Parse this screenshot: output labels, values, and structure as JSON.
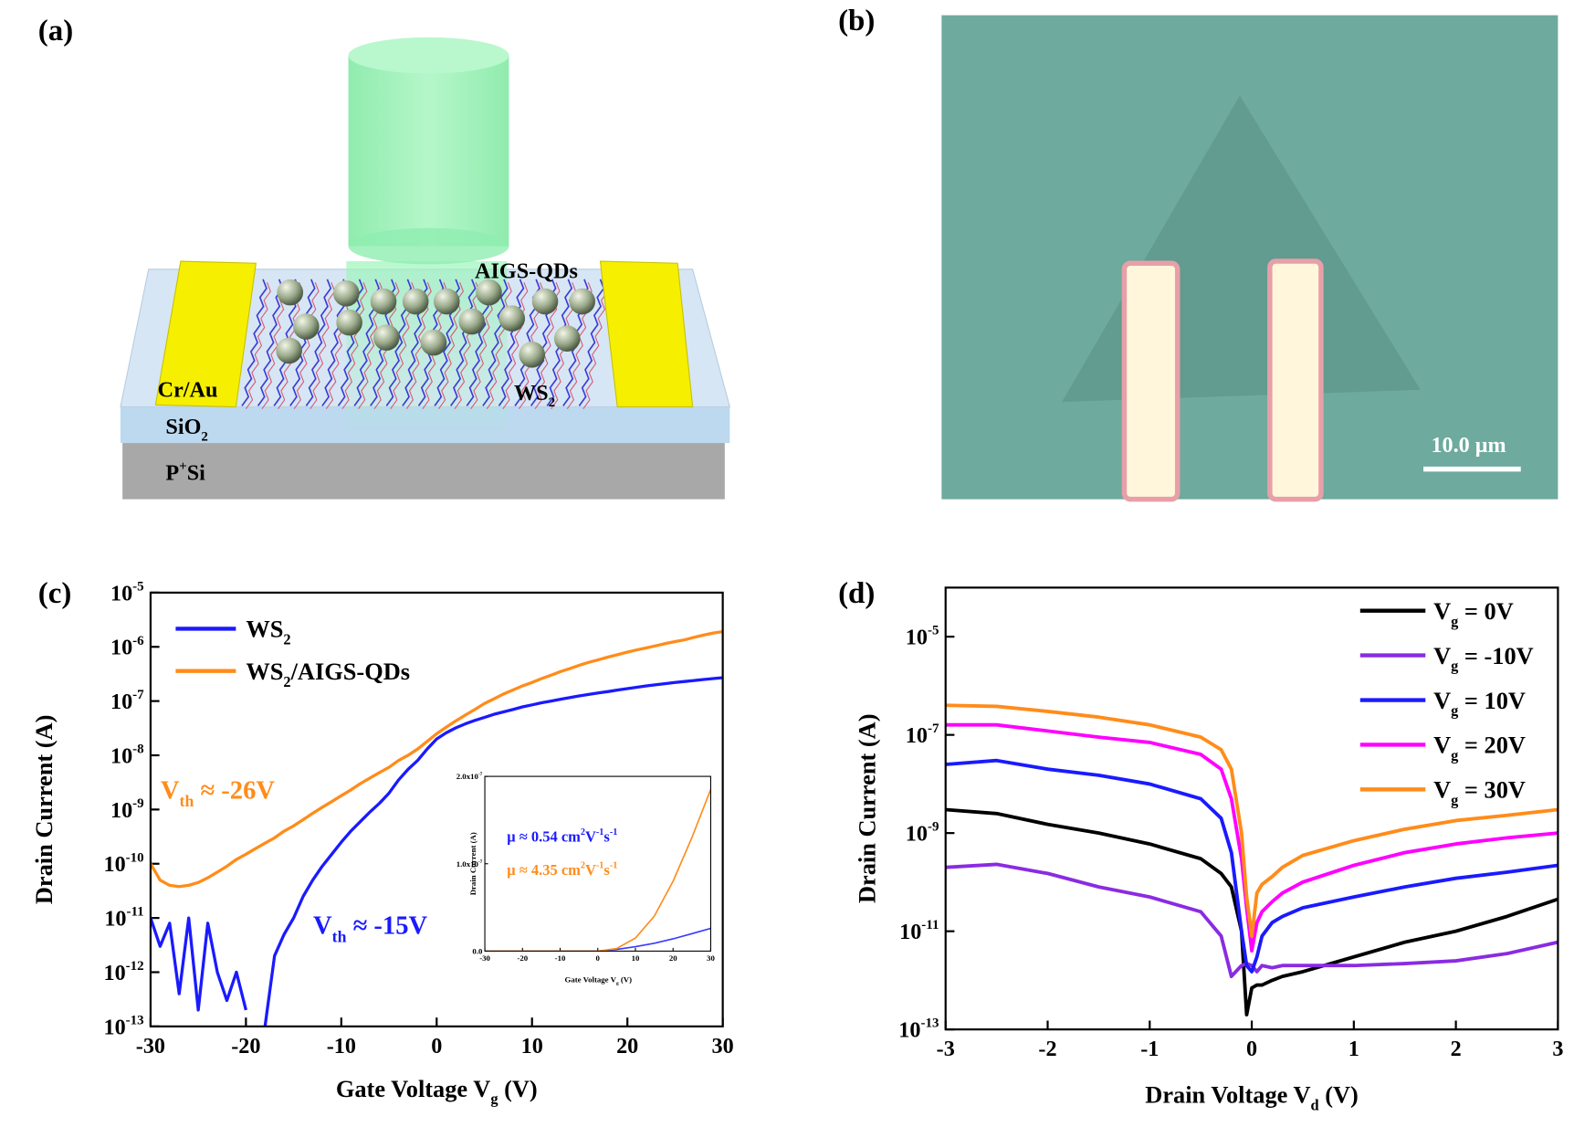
{
  "panel_a": {
    "label": "(a)",
    "qd_label": "AIGS-QDs",
    "electrode_label": "Cr/Au",
    "channel_label": [
      {
        "text": "WS"
      },
      {
        "sub": "2"
      }
    ],
    "oxide_label": [
      {
        "text": "SiO"
      },
      {
        "sub": "2"
      }
    ],
    "substrate_label": [
      {
        "text": "P"
      },
      {
        "sup": "+"
      },
      {
        "text": "Si"
      }
    ]
  },
  "panel_b": {
    "label": "(b)",
    "scale_bar": "10.0 μm"
  },
  "chart_data": [
    {
      "type": "line",
      "panel_label": "(c)",
      "log_y": true,
      "x_label": [
        {
          "text": "Gate Voltage V"
        },
        {
          "sub": "g"
        },
        {
          "text": " (V)"
        }
      ],
      "y_label": [
        {
          "text": "Drain Current (A)"
        }
      ],
      "xlim": [
        -30,
        30
      ],
      "xticks": [
        -30,
        -20,
        -10,
        0,
        10,
        20,
        30
      ],
      "ylim": [
        1e-13,
        1e-05
      ],
      "yticks": [
        {
          "value": 1e-13,
          "label": "10",
          "exponent": "-13"
        },
        {
          "value": 1e-12,
          "label": "10",
          "exponent": "-12"
        },
        {
          "value": 1e-11,
          "label": "10",
          "exponent": "-11"
        },
        {
          "value": 1e-10,
          "label": "10",
          "exponent": "-10"
        },
        {
          "value": 1e-09,
          "label": "10",
          "exponent": "-9"
        },
        {
          "value": 1e-08,
          "label": "10",
          "exponent": "-8"
        },
        {
          "value": 1e-07,
          "label": "10",
          "exponent": "-7"
        },
        {
          "value": 1e-06,
          "label": "10",
          "exponent": "-6"
        },
        {
          "value": 1e-05,
          "label": "10",
          "exponent": "-5"
        }
      ],
      "x": [
        -30,
        -29,
        -28,
        -27,
        -26,
        -25,
        -24,
        -23,
        -22,
        -21,
        -20,
        -19,
        -18,
        -17,
        -16,
        -15,
        -14,
        -13,
        -12,
        -11,
        -10,
        -9,
        -8,
        -7,
        -6,
        -5,
        -4,
        -3,
        -2,
        -1,
        0,
        1,
        2,
        3,
        4,
        5,
        6,
        7,
        8,
        9,
        10,
        11,
        12,
        13,
        14,
        15,
        16,
        17,
        18,
        19,
        20,
        21,
        22,
        23,
        24,
        25,
        26,
        27,
        28,
        29,
        30
      ],
      "series": [
        {
          "name": [
            {
              "text": "WS"
            },
            {
              "sub": "2"
            }
          ],
          "color": "#1a1aff",
          "values": [
            1e-11,
            3e-12,
            8e-12,
            4e-13,
            1e-11,
            2e-13,
            8e-12,
            1e-12,
            3e-13,
            1e-12,
            2e-13,
            null,
            1e-13,
            2e-12,
            5e-12,
            1e-11,
            2.5e-11,
            5e-11,
            9e-11,
            1.5e-10,
            2.5e-10,
            4e-10,
            6e-10,
            9e-10,
            1.3e-09,
            2e-09,
            3.5e-09,
            5.5e-09,
            8e-09,
            1.3e-08,
            2e-08,
            2.6e-08,
            3.2e-08,
            3.8e-08,
            4.4e-08,
            5e-08,
            5.7e-08,
            6.3e-08,
            7e-08,
            7.8e-08,
            8.5e-08,
            9.3e-08,
            1e-07,
            1.08e-07,
            1.16e-07,
            1.25e-07,
            1.33e-07,
            1.42e-07,
            1.5e-07,
            1.6e-07,
            1.7e-07,
            1.8e-07,
            1.9e-07,
            2e-07,
            2.1e-07,
            2.2e-07,
            2.3e-07,
            2.4e-07,
            2.5e-07,
            2.6e-07,
            2.7e-07
          ]
        },
        {
          "name": [
            {
              "text": "WS"
            },
            {
              "sub": "2"
            },
            {
              "text": "/AIGS-QDs"
            }
          ],
          "color": "#ff8c1a",
          "values": [
            1e-10,
            5e-11,
            4e-11,
            3.8e-11,
            4e-11,
            4.5e-11,
            5.5e-11,
            7e-11,
            9e-11,
            1.2e-10,
            1.5e-10,
            1.9e-10,
            2.4e-10,
            3e-10,
            4e-10,
            5e-10,
            6.5e-10,
            8.5e-10,
            1.1e-09,
            1.4e-09,
            1.8e-09,
            2.3e-09,
            3e-09,
            3.8e-09,
            4.8e-09,
            6e-09,
            8e-09,
            1e-08,
            1.3e-08,
            1.8e-08,
            2.5e-08,
            3.3e-08,
            4.3e-08,
            5.5e-08,
            7e-08,
            9e-08,
            1.1e-07,
            1.35e-07,
            1.6e-07,
            1.9e-07,
            2.2e-07,
            2.6e-07,
            3e-07,
            3.5e-07,
            4e-07,
            4.6e-07,
            5.2e-07,
            5.8e-07,
            6.5e-07,
            7.2e-07,
            8e-07,
            8.8e-07,
            9.6e-07,
            1.05e-06,
            1.15e-06,
            1.25e-06,
            1.35e-06,
            1.5e-06,
            1.65e-06,
            1.8e-06,
            1.9e-06
          ]
        }
      ],
      "annotations": [
        {
          "segments": [
            {
              "text": "V"
            },
            {
              "sub": "th"
            },
            {
              "text": " ≈ -26V"
            }
          ],
          "color": "#ff8c1a"
        },
        {
          "segments": [
            {
              "text": "V"
            },
            {
              "sub": "th"
            },
            {
              "text": " ≈ -15V"
            }
          ],
          "color": "#1a1aff"
        }
      ]
    },
    {
      "type": "line",
      "log_y": false,
      "x_label": [
        {
          "text": "Gate Voltage V"
        },
        {
          "sub": "g"
        },
        {
          "text": " (V)"
        }
      ],
      "y_label": [
        {
          "text": "Drain Current (A)"
        }
      ],
      "xlim": [
        -30,
        30
      ],
      "xticks": [
        -30,
        -20,
        -10,
        0,
        10,
        20,
        30
      ],
      "ylim": [
        0,
        2e-07
      ],
      "yticks": [
        {
          "value": 0,
          "label": "0.0"
        },
        {
          "value": 1e-07,
          "label": "1.0x10",
          "exponent": "-7"
        },
        {
          "value": 2e-07,
          "label": "2.0x10",
          "exponent": "-7"
        }
      ],
      "x": [
        -30,
        -25,
        -20,
        -15,
        -10,
        -5,
        0,
        5,
        10,
        15,
        20,
        25,
        30
      ],
      "series": [
        {
          "color": "#3a3aff",
          "values": [
            0,
            0,
            0,
            0,
            0,
            0,
            0,
            2e-09,
            5e-09,
            9e-09,
            1.4e-08,
            2e-08,
            2.6e-08
          ]
        },
        {
          "color": "#ff8c1a",
          "values": [
            0,
            0,
            0,
            0,
            0,
            0,
            0,
            3e-09,
            1.5e-08,
            4e-08,
            8e-08,
            1.3e-07,
            1.85e-07
          ]
        }
      ],
      "annotations": [
        {
          "segments": [
            {
              "text": "μ ≈ 0.54 cm"
            },
            {
              "sup": "2"
            },
            {
              "text": "V"
            },
            {
              "sup": "-1"
            },
            {
              "text": "s"
            },
            {
              "sup": "-1"
            }
          ],
          "color": "#1a1aff"
        },
        {
          "segments": [
            {
              "text": "μ ≈ 4.35 cm"
            },
            {
              "sup": "2"
            },
            {
              "text": "V"
            },
            {
              "sup": "-1"
            },
            {
              "text": "s"
            },
            {
              "sup": "-1"
            }
          ],
          "color": "#ff8c1a"
        }
      ]
    },
    {
      "type": "line",
      "panel_label": "(d)",
      "log_y": true,
      "x_label": [
        {
          "text": "Drain Voltage V"
        },
        {
          "sub": "d"
        },
        {
          "text": " (V)"
        }
      ],
      "y_label": [
        {
          "text": "Drain Current (A)"
        }
      ],
      "xlim": [
        -3,
        3
      ],
      "xticks": [
        -3,
        -2,
        -1,
        0,
        1,
        2,
        3
      ],
      "ylim": [
        1e-13,
        0.0001
      ],
      "yticks": [
        {
          "value": 1e-13,
          "label": "10",
          "exponent": "-13"
        },
        {
          "value": 1e-11,
          "label": "10",
          "exponent": "-11"
        },
        {
          "value": 1e-09,
          "label": "10",
          "exponent": "-9"
        },
        {
          "value": 1e-07,
          "label": "10",
          "exponent": "-7"
        },
        {
          "value": 1e-05,
          "label": "10",
          "exponent": "-5"
        }
      ],
      "x": [
        -3,
        -2.5,
        -2,
        -1.5,
        -1,
        -0.5,
        -0.3,
        -0.2,
        -0.1,
        -0.05,
        0,
        0.05,
        0.1,
        0.2,
        0.3,
        0.5,
        1,
        1.5,
        2,
        2.5,
        3
      ],
      "series": [
        {
          "name": [
            {
              "text": "V"
            },
            {
              "sub": "g"
            },
            {
              "text": " = 0V"
            }
          ],
          "color": "#000000",
          "values": [
            3e-09,
            2.5e-09,
            1.5e-09,
            1e-09,
            6e-10,
            3e-10,
            1.5e-10,
            8e-11,
            1e-11,
            2e-13,
            7e-13,
            8e-13,
            8e-13,
            1e-12,
            1.2e-12,
            1.5e-12,
            3e-12,
            6e-12,
            1e-11,
            2e-11,
            4.5e-11
          ]
        },
        {
          "name": [
            {
              "text": "V"
            },
            {
              "sub": "g"
            },
            {
              "text": " = -10V"
            }
          ],
          "color": "#8a2be2",
          "values": [
            2e-10,
            2.3e-10,
            1.5e-10,
            8e-11,
            5e-11,
            2.5e-11,
            8e-12,
            1.2e-12,
            2e-12,
            2.2e-12,
            2e-12,
            1.5e-12,
            2e-12,
            1.8e-12,
            2e-12,
            2e-12,
            2e-12,
            2.2e-12,
            2.5e-12,
            3.5e-12,
            6e-12
          ]
        },
        {
          "name": [
            {
              "text": "V"
            },
            {
              "sub": "g"
            },
            {
              "text": " = 10V"
            }
          ],
          "color": "#1a1aff",
          "values": [
            2.5e-08,
            3e-08,
            2e-08,
            1.5e-08,
            1e-08,
            5e-09,
            2e-09,
            4e-10,
            1e-11,
            2e-12,
            1.5e-12,
            3e-12,
            8e-12,
            1.5e-11,
            2e-11,
            3e-11,
            5e-11,
            8e-11,
            1.2e-10,
            1.6e-10,
            2.2e-10
          ]
        },
        {
          "name": [
            {
              "text": "V"
            },
            {
              "sub": "g"
            },
            {
              "text": " = 20V"
            }
          ],
          "color": "#ff00ff",
          "values": [
            1.6e-07,
            1.6e-07,
            1.2e-07,
            9e-08,
            7e-08,
            4e-08,
            2e-08,
            5e-09,
            3e-10,
            3e-11,
            4e-12,
            1.5e-11,
            2.5e-11,
            4e-11,
            6e-11,
            1e-10,
            2.2e-10,
            4e-10,
            6e-10,
            8e-10,
            1e-09
          ]
        },
        {
          "name": [
            {
              "text": "V"
            },
            {
              "sub": "g"
            },
            {
              "text": " = 30V"
            }
          ],
          "color": "#ff8c1a",
          "values": [
            4e-07,
            3.8e-07,
            3e-07,
            2.3e-07,
            1.6e-07,
            9e-08,
            5e-08,
            2e-08,
            1e-09,
            5e-11,
            8e-12,
            6e-11,
            9e-11,
            1.3e-10,
            2e-10,
            3.5e-10,
            7e-10,
            1.2e-09,
            1.8e-09,
            2.3e-09,
            3e-09
          ]
        }
      ]
    }
  ]
}
